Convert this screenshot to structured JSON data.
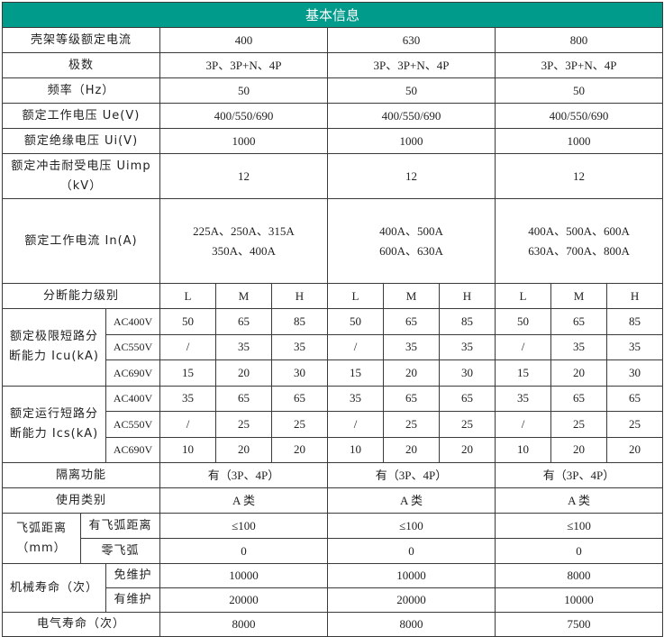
{
  "title": "基本信息",
  "rows": {
    "frame_current": {
      "label": "壳架等级额定电流",
      "values": [
        "400",
        "630",
        "800"
      ]
    },
    "poles": {
      "label": "极数",
      "values": [
        "3P、3P+N、4P",
        "3P、3P+N、4P",
        "3P、3P+N、4P"
      ]
    },
    "frequency": {
      "label": "频率（Hz）",
      "values": [
        "50",
        "50",
        "50"
      ]
    },
    "ue": {
      "label": "额定工作电压 Ue(V)",
      "values": [
        "400/550/690",
        "400/550/690",
        "400/550/690"
      ]
    },
    "ui": {
      "label": "额定绝缘电压 Ui(V)",
      "values": [
        "1000",
        "1000",
        "1000"
      ]
    },
    "uimp": {
      "label": "额定冲击耐受电压 Uimp（kV）",
      "values": [
        "12",
        "12",
        "12"
      ]
    },
    "in": {
      "label": "额定工作电流 In(A)",
      "values": [
        [
          "225A、250A、315A",
          "350A、400A"
        ],
        [
          "400A、500A",
          "600A、630A"
        ],
        [
          "400A、500A、600A",
          "630A、700A、800A"
        ]
      ]
    },
    "breaking_level": {
      "label": "分断能力级别",
      "values": [
        "L",
        "M",
        "H",
        "L",
        "M",
        "H",
        "L",
        "M",
        "H"
      ]
    },
    "icu": {
      "label": "额定极限短路分断能力 Icu(kA)",
      "rows": [
        {
          "voltage": "AC400V",
          "values": [
            "50",
            "65",
            "85",
            "50",
            "65",
            "85",
            "50",
            "65",
            "85"
          ]
        },
        {
          "voltage": "AC550V",
          "values": [
            "/",
            "35",
            "35",
            "/",
            "35",
            "35",
            "/",
            "35",
            "35"
          ]
        },
        {
          "voltage": "AC690V",
          "values": [
            "15",
            "20",
            "30",
            "15",
            "20",
            "30",
            "15",
            "20",
            "30"
          ]
        }
      ]
    },
    "ics": {
      "label": "额定运行短路分断能力 Ics(kA)",
      "rows": [
        {
          "voltage": "AC400V",
          "values": [
            "35",
            "65",
            "65",
            "35",
            "65",
            "65",
            "35",
            "65",
            "65"
          ]
        },
        {
          "voltage": "AC550V",
          "values": [
            "/",
            "25",
            "25",
            "/",
            "25",
            "25",
            "/",
            "25",
            "25"
          ]
        },
        {
          "voltage": "AC690V",
          "values": [
            "10",
            "20",
            "20",
            "10",
            "20",
            "20",
            "10",
            "20",
            "20"
          ]
        }
      ]
    },
    "isolation": {
      "label": "隔离功能",
      "values": [
        "有（3P、4P）",
        "有（3P、4P）",
        "有（3P、4P）"
      ]
    },
    "category": {
      "label": "使用类别",
      "values": [
        "A 类",
        "A 类",
        "A 类"
      ]
    },
    "arc": {
      "label": "飞弧距离（mm）",
      "rows": [
        {
          "sub": "有飞弧距离",
          "values": [
            "≤100",
            "≤100",
            "≤100"
          ]
        },
        {
          "sub": "零飞弧",
          "values": [
            "0",
            "0",
            "0"
          ]
        }
      ]
    },
    "mech_life": {
      "label": "机械寿命（次）",
      "rows": [
        {
          "sub": "免维护",
          "values": [
            "10000",
            "10000",
            "8000"
          ]
        },
        {
          "sub": "有维护",
          "values": [
            "20000",
            "20000",
            "10000"
          ]
        }
      ]
    },
    "elec_life": {
      "label": "电气寿命（次）",
      "values": [
        "8000",
        "8000",
        "7500"
      ]
    }
  },
  "colors": {
    "header_bg": "#009b8b",
    "header_text": "#ffffff",
    "border": "#3a3a3a"
  }
}
